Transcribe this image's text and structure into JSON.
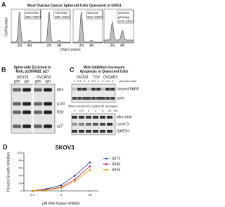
{
  "panel_a": {
    "letter": "A",
    "title": "Most Ovarian Cancer Spheroid Cells Quiescent in G0/G1",
    "y_label": "Cell Number",
    "x_label": "DNA Content",
    "x_ticks": [
      "2N",
      "4N"
    ],
    "plots": [
      {
        "line1": "OVCAR3",
        "line2": "96% G0G1"
      },
      {
        "line1": "TOV21G",
        "line2": "95% G0G1"
      },
      {
        "line1": "SKOV3",
        "line2": "91% G0G1"
      },
      {
        "line1": "SKOV3",
        "line2": "growing",
        "line3": "57% G0G1"
      }
    ]
  },
  "panel_b": {
    "letter": "B",
    "title": [
      "Spheroids Enriched in",
      "Mirk, p130/RB2, p27"
    ],
    "cell_lines": [
      "SKOV3",
      "OVCAR3"
    ],
    "lanes": [
      "grth",
      "sph",
      "grth",
      "sph"
    ],
    "rows": [
      "Mirk",
      "p130",
      "RB2",
      "p27"
    ]
  },
  "panel_c": {
    "letter": "C",
    "title": [
      "Mirk Inhibition Increases",
      "Apoptosis in Quiescent Cells"
    ],
    "cell_lines": [
      "SKOV3",
      "TOV",
      "OVCAR3"
    ],
    "doses": [
      "0",
      "0.5",
      "2"
    ],
    "dose_unit": "μM Mirk inhib",
    "rows": [
      "cleaved PARP",
      "actin"
    ],
    "timecourse_title": "Time-course for Cyclin D1 increase",
    "times": [
      "0",
      "0.5",
      "2",
      "4",
      "8",
      "24"
    ],
    "time_unit": "hrs",
    "timecourse_rows": [
      "Mirk inhib",
      "cyclin D",
      "GAPDH"
    ]
  },
  "panel_d": {
    "letter": "D",
    "title": "SKOV3",
    "y_label": "Percent Growth Inhibition",
    "x_label": "μM Mirk Kinase Inhibitor",
    "log_x": true,
    "x": [
      0.1,
      0.3,
      1,
      3,
      10
    ],
    "xlim": [
      0.05,
      20
    ],
    "xticks": [
      0.1,
      1,
      10
    ],
    "ylim": [
      0,
      100
    ],
    "yticks": [
      0,
      20,
      40,
      60,
      80,
      100
    ],
    "series": [
      {
        "name": "SK73",
        "color": "#1a3a8a",
        "values": [
          0,
          5,
          15,
          40,
          75
        ]
      },
      {
        "name": "SK40",
        "color": "#c2185b",
        "values": [
          0,
          3,
          10,
          30,
          65
        ]
      },
      {
        "name": "SK45",
        "color": "#d89a00",
        "values": [
          0,
          2,
          8,
          25,
          55
        ]
      }
    ]
  }
}
